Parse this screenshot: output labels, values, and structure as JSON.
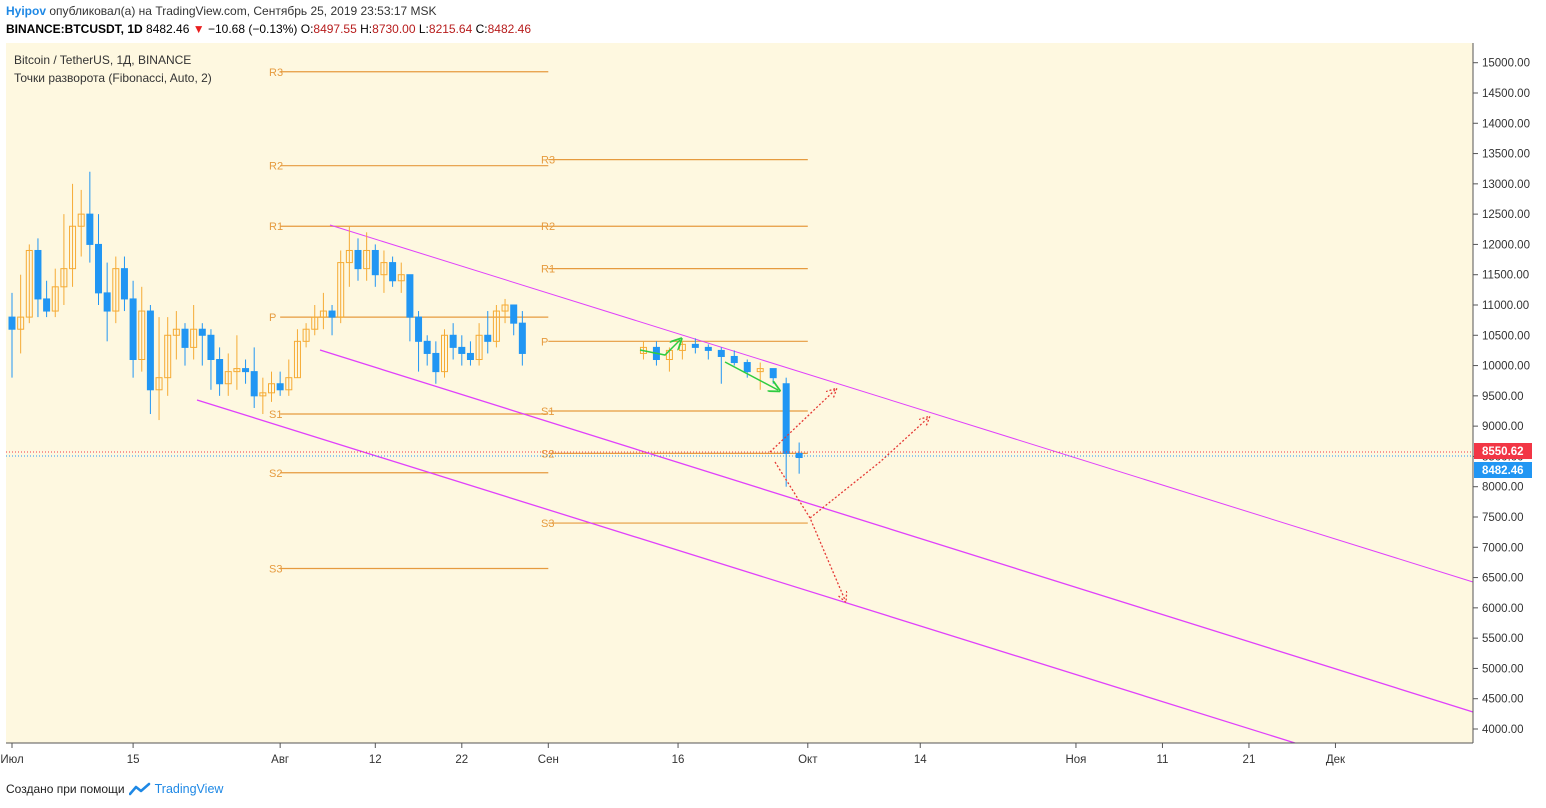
{
  "header": {
    "author": "Hyipov",
    "published_text": "опубликовал(а) на TradingView.com, Сентябрь 25, 2019 23:53:17 MSK",
    "symbol": "BINANCE:BTCUSDT, 1D",
    "last": "8482.46",
    "change": "−10.68 (−0.13%)",
    "o_label": "O:",
    "o_value": "8497.55",
    "h_label": "H:",
    "h_value": "8730.00",
    "l_label": "L:",
    "l_value": "8215.64",
    "c_label": "C:",
    "c_value": "8482.46"
  },
  "legend": {
    "series_title": "Bitcoin / TetherUS, 1Д, BINANCE",
    "indicator": "Точки разворота (Fibonacci, Auto, 2)"
  },
  "footer": {
    "created_with": "Создано при помощи",
    "brand": "TradingView"
  },
  "colors": {
    "background": "#fef8e0",
    "up_candle": "#f5ab35",
    "down_candle": "#2196f3",
    "pivot_line": "#e69b3f",
    "channel": "#e040fb",
    "forecast": "#e53935",
    "arrow": "#2ecc40",
    "price_red": "#f23645",
    "price_blue": "#2196f3"
  },
  "chart_data": {
    "type": "candlestick",
    "symbol": "BTCUSDT",
    "interval": "1D",
    "ylim": [
      3700,
      15300
    ],
    "y_ticks": [
      15000,
      14500,
      14000,
      13500,
      13000,
      12500,
      12000,
      11500,
      11000,
      10500,
      10000,
      9500,
      9000,
      8500,
      8000,
      7500,
      7000,
      6500,
      6000,
      5500,
      5000,
      4500,
      4000
    ],
    "x_ticks": [
      {
        "label": "Июл",
        "day": 0
      },
      {
        "label": "15",
        "day": 14
      },
      {
        "label": "Авг",
        "day": 31
      },
      {
        "label": "12",
        "day": 42
      },
      {
        "label": "22",
        "day": 52
      },
      {
        "label": "Сен",
        "day": 62
      },
      {
        "label": "16",
        "day": 77
      },
      {
        "label": "Окт",
        "day": 92
      },
      {
        "label": "14",
        "day": 105
      },
      {
        "label": "Ноя",
        "day": 123
      },
      {
        "label": "11",
        "day": 133
      },
      {
        "label": "21",
        "day": 143
      },
      {
        "label": "Дек",
        "day": 153
      }
    ],
    "candles": [
      [
        10800,
        11200,
        9800,
        10600
      ],
      [
        10600,
        11500,
        10200,
        10800
      ],
      [
        10800,
        12000,
        10700,
        11900
      ],
      [
        11900,
        12100,
        10800,
        11100
      ],
      [
        11100,
        11400,
        10800,
        10900
      ],
      [
        10900,
        11600,
        10800,
        11300
      ],
      [
        11300,
        12500,
        11000,
        11600
      ],
      [
        11600,
        13000,
        11300,
        12300
      ],
      [
        12300,
        12900,
        11800,
        12500
      ],
      [
        12500,
        13200,
        11700,
        12000
      ],
      [
        12000,
        12500,
        11000,
        11200
      ],
      [
        11200,
        11700,
        10400,
        10900
      ],
      [
        10900,
        11800,
        10700,
        11600
      ],
      [
        11600,
        11800,
        10900,
        11100
      ],
      [
        11100,
        11400,
        9800,
        10100
      ],
      [
        10100,
        11300,
        9900,
        10900
      ],
      [
        10900,
        11000,
        9200,
        9600
      ],
      [
        9600,
        10800,
        9100,
        9800
      ],
      [
        9800,
        10800,
        9500,
        10500
      ],
      [
        10500,
        10900,
        10100,
        10600
      ],
      [
        10600,
        10700,
        10000,
        10300
      ],
      [
        10300,
        11000,
        10100,
        10600
      ],
      [
        10600,
        10700,
        10000,
        10500
      ],
      [
        10500,
        10600,
        9600,
        10100
      ],
      [
        10100,
        10300,
        9500,
        9700
      ],
      [
        9700,
        10200,
        9500,
        9900
      ],
      [
        9900,
        10500,
        9600,
        9950
      ],
      [
        9950,
        10100,
        9700,
        9900
      ],
      [
        9900,
        10300,
        9300,
        9500
      ],
      [
        9500,
        9800,
        9200,
        9550
      ],
      [
        9550,
        9900,
        9400,
        9700
      ],
      [
        9700,
        9900,
        9500,
        9600
      ],
      [
        9600,
        10100,
        9500,
        9800
      ],
      [
        9800,
        10600,
        9800,
        10400
      ],
      [
        10400,
        10700,
        10300,
        10600
      ],
      [
        10600,
        11000,
        10500,
        10800
      ],
      [
        10800,
        11200,
        10600,
        10900
      ],
      [
        10900,
        11000,
        10500,
        10800
      ],
      [
        10800,
        11900,
        10700,
        11700
      ],
      [
        11700,
        12300,
        11300,
        11900
      ],
      [
        11900,
        12100,
        11400,
        11600
      ],
      [
        11600,
        12200,
        11400,
        11900
      ],
      [
        11900,
        12000,
        11300,
        11500
      ],
      [
        11500,
        11900,
        11200,
        11700
      ],
      [
        11700,
        11800,
        11300,
        11400
      ],
      [
        11400,
        11700,
        11200,
        11500
      ],
      [
        11500,
        11500,
        10400,
        10800
      ],
      [
        10800,
        10900,
        9900,
        10400
      ],
      [
        10400,
        10500,
        10000,
        10200
      ],
      [
        10200,
        10400,
        9700,
        9900
      ],
      [
        9900,
        10600,
        9800,
        10500
      ],
      [
        10500,
        10700,
        10100,
        10300
      ],
      [
        10300,
        10500,
        10000,
        10200
      ],
      [
        10200,
        10400,
        10000,
        10100
      ],
      [
        10100,
        10700,
        10000,
        10500
      ],
      [
        10500,
        10900,
        10200,
        10400
      ],
      [
        10400,
        11000,
        10300,
        10900
      ],
      [
        10900,
        11100,
        10700,
        11000
      ],
      [
        11000,
        11000,
        10500,
        10700
      ],
      [
        10700,
        10900,
        10000,
        10200
      ]
    ],
    "pivots": [
      {
        "period": "Jul",
        "levels": {
          "R3": 14850,
          "R2": 13300,
          "R1": 12300,
          "P": 10800,
          "S1": 9200,
          "S2": 8230,
          "S3": 6650
        }
      },
      {
        "period": "Aug",
        "levels": {
          "R3": 13400,
          "R2": 12300,
          "R1": 11600,
          "P": 10400,
          "S1": 9250,
          "S2": 8550,
          "S3": 7400
        }
      },
      {
        "period": "Sep",
        "levels": {
          "R3": 13400,
          "R2": 12300,
          "R1": 11600,
          "P": 10400,
          "S1": 9250,
          "S2": 8550,
          "S3": 7400
        }
      }
    ],
    "current_prices": [
      8550.62,
      8482.46
    ]
  }
}
